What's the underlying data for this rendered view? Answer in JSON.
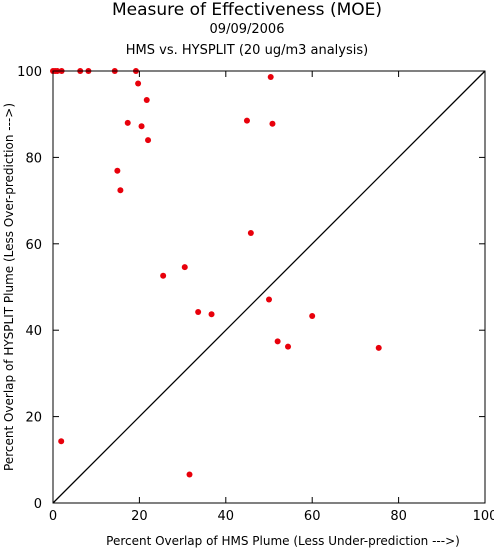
{
  "chart_data": {
    "type": "scatter",
    "title": "Measure of Effectiveness (MOE)",
    "subtitle_date": "09/09/2006",
    "subtitle_analysis": "HMS vs. HYSPLIT  (20 ug/m3 analysis)",
    "xlabel": "Percent Overlap of HMS Plume (Less Under-prediction --->)",
    "ylabel": "Percent Overlap of HYSPLIT Plume (Less Over-prediction --->)",
    "xlim": [
      0,
      100
    ],
    "ylim": [
      0,
      100
    ],
    "xticks": [
      0,
      20,
      40,
      60,
      80,
      100
    ],
    "yticks": [
      0,
      20,
      40,
      60,
      80,
      100
    ],
    "grid": false,
    "reference_line": {
      "x": [
        0,
        100
      ],
      "y": [
        0,
        100
      ],
      "color": "#000000"
    },
    "point_color": "#e8000b",
    "points": [
      {
        "x": 0.0,
        "y": 100.0
      },
      {
        "x": 0.5,
        "y": 100.0
      },
      {
        "x": 1.0,
        "y": 100.0
      },
      {
        "x": 2.0,
        "y": 100.0
      },
      {
        "x": 6.3,
        "y": 100.0
      },
      {
        "x": 8.2,
        "y": 100.0
      },
      {
        "x": 14.3,
        "y": 100.0
      },
      {
        "x": 19.2,
        "y": 100.0
      },
      {
        "x": 19.7,
        "y": 97.1
      },
      {
        "x": 21.7,
        "y": 93.3
      },
      {
        "x": 17.3,
        "y": 88.0
      },
      {
        "x": 20.5,
        "y": 87.2
      },
      {
        "x": 22.0,
        "y": 84.0
      },
      {
        "x": 14.9,
        "y": 76.9
      },
      {
        "x": 15.6,
        "y": 72.4
      },
      {
        "x": 50.4,
        "y": 98.6
      },
      {
        "x": 44.9,
        "y": 88.5
      },
      {
        "x": 50.8,
        "y": 87.8
      },
      {
        "x": 45.8,
        "y": 62.5
      },
      {
        "x": 25.5,
        "y": 52.6
      },
      {
        "x": 30.5,
        "y": 54.6
      },
      {
        "x": 33.6,
        "y": 44.2
      },
      {
        "x": 36.7,
        "y": 43.7
      },
      {
        "x": 50.0,
        "y": 47.1
      },
      {
        "x": 60.0,
        "y": 43.3
      },
      {
        "x": 52.0,
        "y": 37.4
      },
      {
        "x": 54.4,
        "y": 36.2
      },
      {
        "x": 75.4,
        "y": 35.9
      },
      {
        "x": 1.9,
        "y": 14.3
      },
      {
        "x": 31.6,
        "y": 6.6
      }
    ]
  }
}
